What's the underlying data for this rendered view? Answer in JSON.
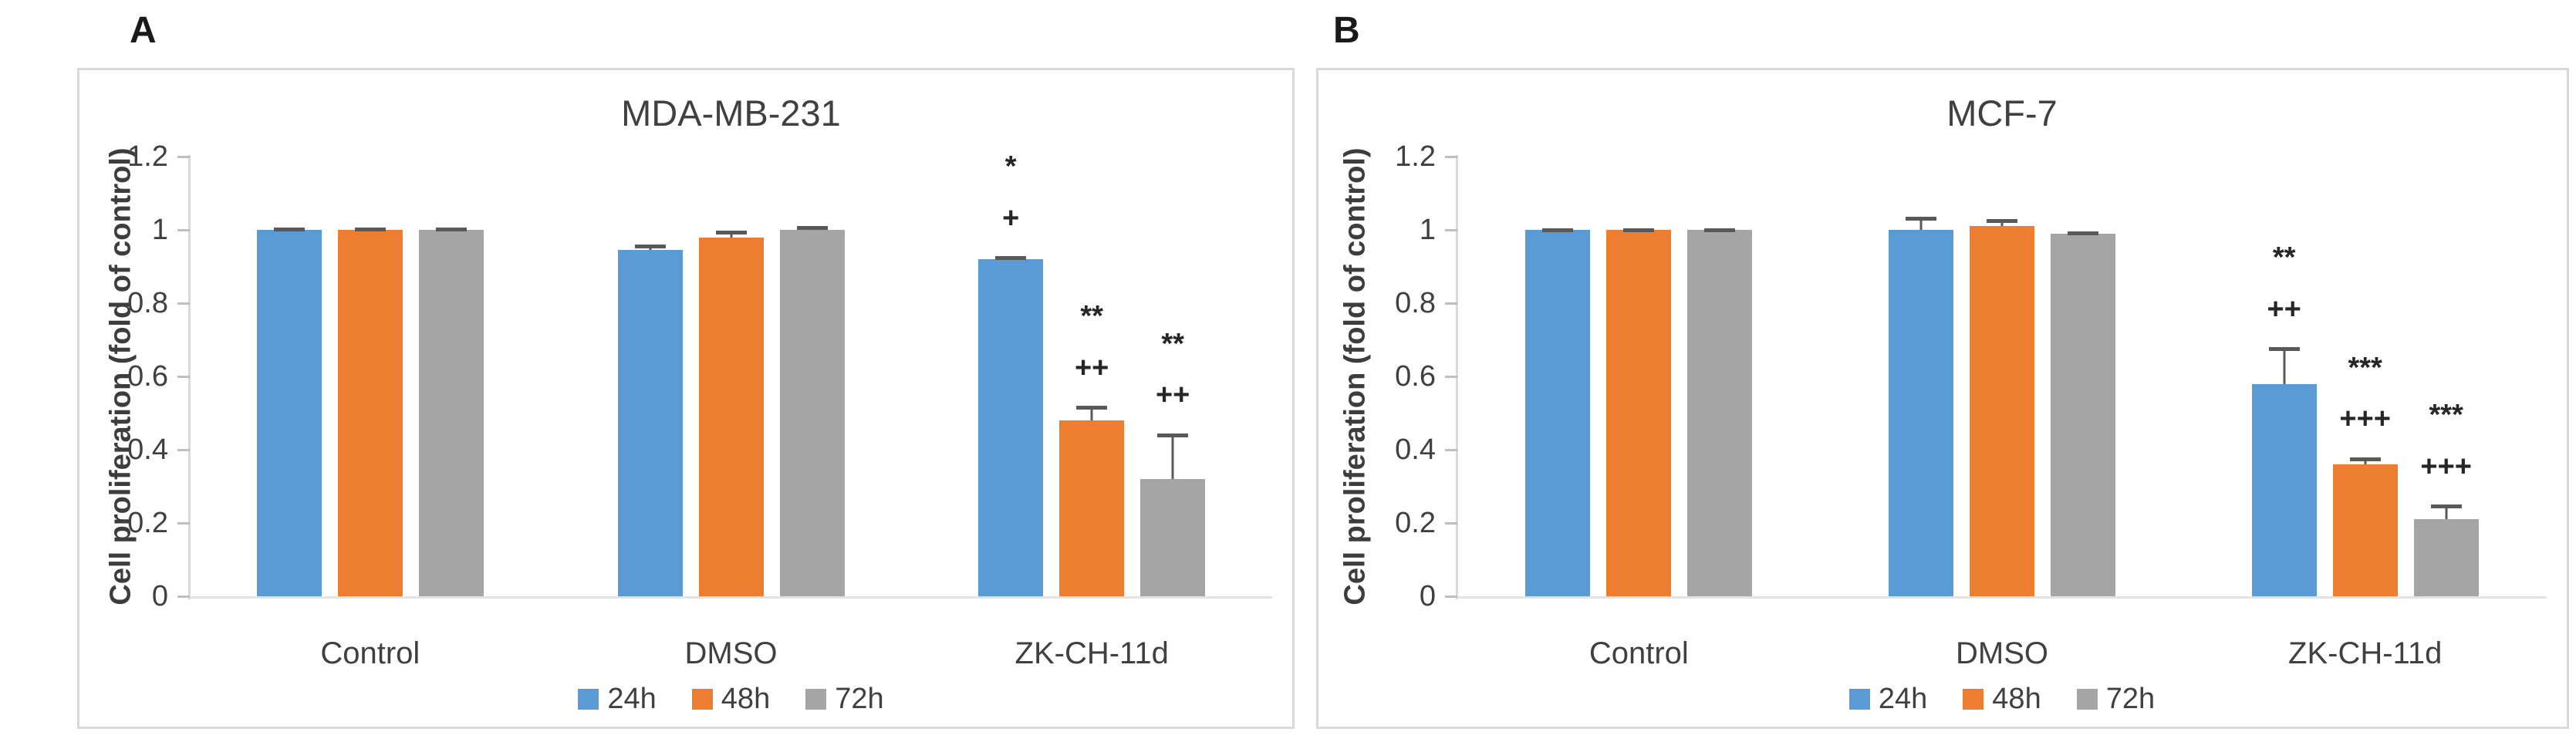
{
  "figure": {
    "panels": [
      {
        "letter": "A",
        "chart_index": 0
      },
      {
        "letter": "B",
        "chart_index": 1
      }
    ]
  },
  "colors": {
    "series_24h": "#5B9BD5",
    "series_48h": "#ED7D31",
    "series_72h": "#A5A5A5",
    "error_bar": "#595959",
    "axis_line": "#D9D9D9",
    "text": "#404040"
  },
  "chart_data": [
    {
      "type": "bar",
      "title": "MDA-MB-231",
      "ylabel": "Cell proliferation (fold of control)",
      "xlabel": "",
      "categories": [
        "Control",
        "DMSO",
        "ZK-CH-11d"
      ],
      "ylim": [
        0,
        1.2
      ],
      "ytick_labels": [
        "0",
        "0.2",
        "0.4",
        "0.6",
        "0.8",
        "1",
        "1.2"
      ],
      "grid": false,
      "legend_position": "bottom",
      "legend": [
        "24h",
        "48h",
        "72h"
      ],
      "series": [
        {
          "name": "24h",
          "color": "#5B9BD5",
          "values": [
            1.0,
            0.945,
            0.92
          ],
          "errors": [
            0.006,
            0.015,
            0.008
          ],
          "significance": [
            [],
            [],
            [
              "*",
              "+"
            ]
          ]
        },
        {
          "name": "48h",
          "color": "#ED7D31",
          "values": [
            1.0,
            0.98,
            0.48
          ],
          "errors": [
            0.006,
            0.018,
            0.04
          ],
          "significance": [
            [],
            [],
            [
              "**",
              "++"
            ]
          ]
        },
        {
          "name": "72h",
          "color": "#A5A5A5",
          "values": [
            1.0,
            1.0,
            0.32
          ],
          "errors": [
            0.006,
            0.01,
            0.125
          ],
          "significance": [
            [],
            [],
            [
              "**",
              "++"
            ]
          ]
        }
      ]
    },
    {
      "type": "bar",
      "title": "MCF-7",
      "ylabel": "Cell proliferation (fold of control)",
      "xlabel": "",
      "categories": [
        "Control",
        "DMSO",
        "ZK-CH-11d"
      ],
      "ylim": [
        0,
        1.2
      ],
      "ytick_labels": [
        "0",
        "0.2",
        "0.4",
        "0.6",
        "0.8",
        "1",
        "1.2"
      ],
      "grid": false,
      "legend_position": "bottom",
      "legend": [
        "24h",
        "48h",
        "72h"
      ],
      "series": [
        {
          "name": "24h",
          "color": "#5B9BD5",
          "values": [
            1.0,
            1.0,
            0.58
          ],
          "errors": [
            0.005,
            0.035,
            0.1
          ],
          "significance": [
            [],
            [],
            [
              "**",
              "++"
            ]
          ]
        },
        {
          "name": "48h",
          "color": "#ED7D31",
          "values": [
            1.0,
            1.01,
            0.36
          ],
          "errors": [
            0.005,
            0.02,
            0.02
          ],
          "significance": [
            [],
            [],
            [
              "***",
              "+++"
            ]
          ]
        },
        {
          "name": "72h",
          "color": "#A5A5A5",
          "values": [
            1.0,
            0.99,
            0.21
          ],
          "errors": [
            0.004,
            0.006,
            0.04
          ],
          "significance": [
            [],
            [],
            [
              "***",
              "+++"
            ]
          ]
        }
      ]
    }
  ]
}
